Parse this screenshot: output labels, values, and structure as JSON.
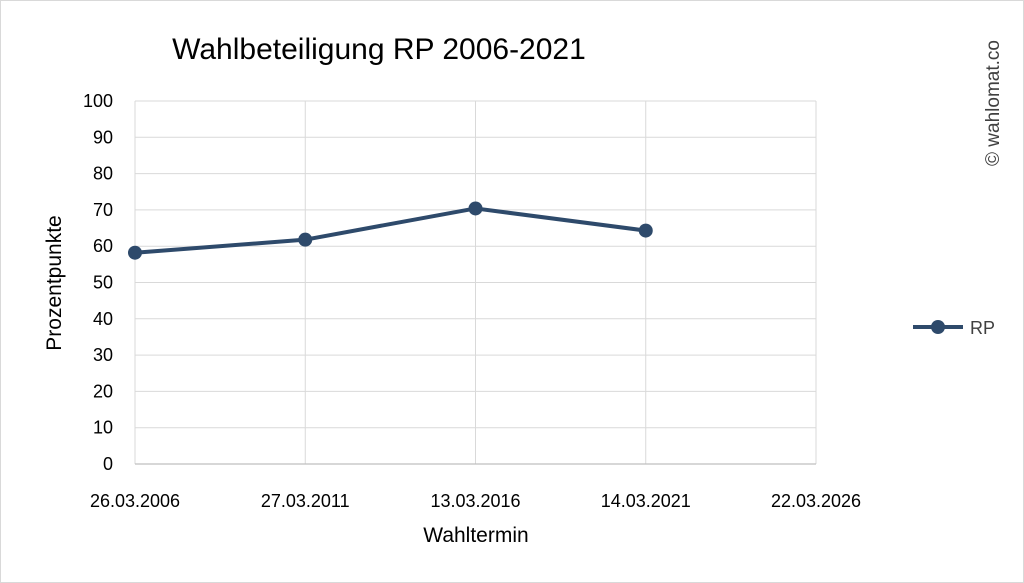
{
  "chart_data": {
    "type": "line",
    "title": "Wahlbeteiligung RP 2006-2021",
    "xlabel": "Wahltermin",
    "ylabel": "Prozentpunkte",
    "x_ticks": [
      "26.03.2006",
      "27.03.2011",
      "13.03.2016",
      "14.03.2021",
      "22.03.2026"
    ],
    "y_ticks": [
      "0",
      "10",
      "20",
      "30",
      "40",
      "50",
      "60",
      "70",
      "80",
      "90",
      "100"
    ],
    "ylim": [
      0,
      100
    ],
    "grid": true,
    "legend_position": "right",
    "series": [
      {
        "name": "RP",
        "color": "#2e4a6b",
        "x": [
          "26.03.2006",
          "27.03.2011",
          "13.03.2016",
          "14.03.2021"
        ],
        "values": [
          58.2,
          61.8,
          70.4,
          64.3
        ]
      }
    ]
  },
  "watermark": "© wahlomat.co"
}
